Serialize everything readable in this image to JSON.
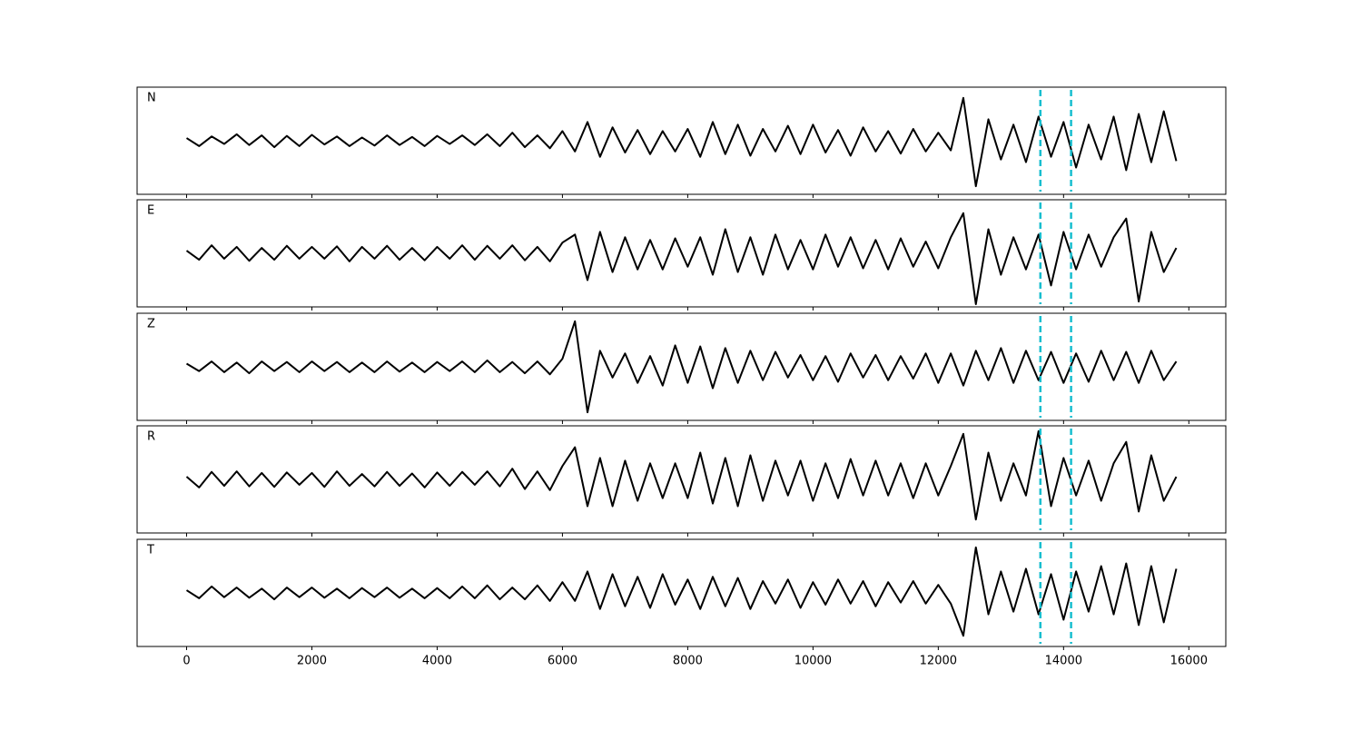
{
  "chart_data": [
    {
      "type": "line",
      "label": "N",
      "color": "#000000",
      "x": [
        0,
        200,
        400,
        600,
        800,
        1000,
        1200,
        1400,
        1600,
        1800,
        2000,
        2200,
        2400,
        2600,
        2800,
        3000,
        3200,
        3400,
        3600,
        3800,
        4000,
        4200,
        4400,
        4600,
        4800,
        5000,
        5200,
        5400,
        5600,
        5800,
        6000,
        6200,
        6400,
        6600,
        6800,
        7000,
        7200,
        7400,
        7600,
        7800,
        8000,
        8200,
        8400,
        8600,
        8800,
        9000,
        9200,
        9400,
        9600,
        9800,
        10000,
        10200,
        10400,
        10600,
        10800,
        11000,
        11200,
        11400,
        11600,
        11800,
        12000,
        12200,
        12400,
        12600,
        12800,
        13000,
        13200,
        13400,
        13600,
        13800,
        14000,
        14200,
        14400,
        14600,
        14800,
        15000,
        15200,
        15400,
        15600,
        15800
      ],
      "values": [
        0.05,
        -0.1,
        0.08,
        -0.06,
        0.12,
        -0.08,
        0.1,
        -0.12,
        0.09,
        -0.1,
        0.11,
        -0.07,
        0.08,
        -0.1,
        0.06,
        -0.09,
        0.1,
        -0.08,
        0.07,
        -0.1,
        0.09,
        -0.06,
        0.1,
        -0.08,
        0.12,
        -0.1,
        0.15,
        -0.12,
        0.1,
        -0.14,
        0.18,
        -0.2,
        0.35,
        -0.3,
        0.25,
        -0.22,
        0.2,
        -0.25,
        0.18,
        -0.2,
        0.22,
        -0.3,
        0.35,
        -0.25,
        0.3,
        -0.28,
        0.22,
        -0.2,
        0.28,
        -0.25,
        0.3,
        -0.22,
        0.2,
        -0.28,
        0.25,
        -0.2,
        0.18,
        -0.24,
        0.22,
        -0.2,
        0.15,
        -0.18,
        0.8,
        -0.85,
        0.4,
        -0.35,
        0.3,
        -0.4,
        0.45,
        -0.3,
        0.35,
        -0.5,
        0.3,
        -0.35,
        0.45,
        -0.55,
        0.5,
        -0.4,
        0.55,
        -0.38
      ],
      "xlim": [
        -790,
        16590
      ],
      "ylim": [
        -1,
        1
      ],
      "xticks": [
        0,
        2000,
        4000,
        6000,
        8000,
        10000,
        12000,
        14000,
        16000
      ],
      "vlines": [
        13630,
        14120
      ],
      "vline_color": "#17becf"
    },
    {
      "type": "line",
      "label": "E",
      "color": "#000000",
      "x": [
        0,
        200,
        400,
        600,
        800,
        1000,
        1200,
        1400,
        1600,
        1800,
        2000,
        2200,
        2400,
        2600,
        2800,
        3000,
        3200,
        3400,
        3600,
        3800,
        4000,
        4200,
        4400,
        4600,
        4800,
        5000,
        5200,
        5400,
        5600,
        5800,
        6000,
        6200,
        6400,
        6600,
        6800,
        7000,
        7200,
        7400,
        7600,
        7800,
        8000,
        8200,
        8400,
        8600,
        8800,
        9000,
        9200,
        9400,
        9600,
        9800,
        10000,
        10200,
        10400,
        10600,
        10800,
        11000,
        11200,
        11400,
        11600,
        11800,
        12000,
        12200,
        12400,
        12600,
        12800,
        13000,
        13200,
        13400,
        13600,
        13800,
        14000,
        14200,
        14400,
        14600,
        14800,
        15000,
        15200,
        15400,
        15600,
        15800
      ],
      "values": [
        0.05,
        -0.12,
        0.15,
        -0.1,
        0.12,
        -0.14,
        0.1,
        -0.12,
        0.14,
        -0.1,
        0.12,
        -0.1,
        0.13,
        -0.15,
        0.12,
        -0.1,
        0.14,
        -0.12,
        0.1,
        -0.13,
        0.12,
        -0.1,
        0.15,
        -0.12,
        0.14,
        -0.1,
        0.15,
        -0.13,
        0.12,
        -0.15,
        0.2,
        0.35,
        -0.5,
        0.4,
        -0.35,
        0.3,
        -0.3,
        0.25,
        -0.3,
        0.28,
        -0.25,
        0.3,
        -0.4,
        0.45,
        -0.35,
        0.3,
        -0.4,
        0.35,
        -0.3,
        0.25,
        -0.3,
        0.35,
        -0.25,
        0.3,
        -0.28,
        0.25,
        -0.3,
        0.28,
        -0.25,
        0.22,
        -0.28,
        0.3,
        0.75,
        -0.95,
        0.45,
        -0.4,
        0.3,
        -0.3,
        0.35,
        -0.6,
        0.4,
        -0.3,
        0.35,
        -0.25,
        0.3,
        0.65,
        -0.9,
        0.4,
        -0.35,
        0.1
      ],
      "xlim": [
        -790,
        16590
      ],
      "ylim": [
        -1,
        1
      ],
      "xticks": [
        0,
        2000,
        4000,
        6000,
        8000,
        10000,
        12000,
        14000,
        16000
      ],
      "vlines": [
        13630,
        14120
      ],
      "vline_color": "#17becf"
    },
    {
      "type": "line",
      "label": "Z",
      "color": "#000000",
      "x": [
        0,
        200,
        400,
        600,
        800,
        1000,
        1200,
        1400,
        1600,
        1800,
        2000,
        2200,
        2400,
        2600,
        2800,
        3000,
        3200,
        3400,
        3600,
        3800,
        4000,
        4200,
        4400,
        4600,
        4800,
        5000,
        5200,
        5400,
        5600,
        5800,
        6000,
        6200,
        6400,
        6600,
        6800,
        7000,
        7200,
        7400,
        7600,
        7800,
        8000,
        8200,
        8400,
        8600,
        8800,
        9000,
        9200,
        9400,
        9600,
        9800,
        10000,
        10200,
        10400,
        10600,
        10800,
        11000,
        11200,
        11400,
        11600,
        11800,
        12000,
        12200,
        12400,
        12600,
        12800,
        13000,
        13200,
        13400,
        13600,
        13800,
        14000,
        14200,
        14400,
        14600,
        14800,
        15000,
        15200,
        15400,
        15600,
        15800
      ],
      "values": [
        0.06,
        -0.08,
        0.1,
        -0.1,
        0.08,
        -0.12,
        0.1,
        -0.08,
        0.09,
        -0.1,
        0.1,
        -0.08,
        0.09,
        -0.1,
        0.08,
        -0.1,
        0.1,
        -0.09,
        0.08,
        -0.1,
        0.09,
        -0.08,
        0.1,
        -0.1,
        0.12,
        -0.1,
        0.09,
        -0.12,
        0.1,
        -0.14,
        0.15,
        0.85,
        -0.85,
        0.3,
        -0.2,
        0.25,
        -0.3,
        0.2,
        -0.35,
        0.4,
        -0.3,
        0.38,
        -0.4,
        0.35,
        -0.3,
        0.3,
        -0.25,
        0.28,
        -0.2,
        0.22,
        -0.25,
        0.2,
        -0.28,
        0.25,
        -0.2,
        0.22,
        -0.25,
        0.2,
        -0.22,
        0.25,
        -0.3,
        0.25,
        -0.35,
        0.3,
        -0.25,
        0.35,
        -0.3,
        0.3,
        -0.25,
        0.28,
        -0.3,
        0.25,
        -0.28,
        0.3,
        -0.25,
        0.28,
        -0.3,
        0.3,
        -0.25,
        0.1
      ],
      "xlim": [
        -790,
        16590
      ],
      "ylim": [
        -1,
        1
      ],
      "xticks": [
        0,
        2000,
        4000,
        6000,
        8000,
        10000,
        12000,
        14000,
        16000
      ],
      "vlines": [
        13630,
        14120
      ],
      "vline_color": "#17becf"
    },
    {
      "type": "line",
      "label": "R",
      "color": "#000000",
      "x": [
        0,
        200,
        400,
        600,
        800,
        1000,
        1200,
        1400,
        1600,
        1800,
        2000,
        2200,
        2400,
        2600,
        2800,
        3000,
        3200,
        3400,
        3600,
        3800,
        4000,
        4200,
        4400,
        4600,
        4800,
        5000,
        5200,
        5400,
        5600,
        5800,
        6000,
        6200,
        6400,
        6600,
        6800,
        7000,
        7200,
        7400,
        7600,
        7800,
        8000,
        8200,
        8400,
        8600,
        8800,
        9000,
        9200,
        9400,
        9600,
        9800,
        10000,
        10200,
        10400,
        10600,
        10800,
        11000,
        11200,
        11400,
        11600,
        11800,
        12000,
        12200,
        12400,
        12600,
        12800,
        13000,
        13200,
        13400,
        13600,
        13800,
        14000,
        14200,
        14400,
        14600,
        14800,
        15000,
        15200,
        15400,
        15600,
        15800
      ],
      "values": [
        0.05,
        -0.15,
        0.14,
        -0.12,
        0.15,
        -0.13,
        0.12,
        -0.14,
        0.13,
        -0.1,
        0.12,
        -0.14,
        0.15,
        -0.12,
        0.1,
        -0.13,
        0.14,
        -0.12,
        0.11,
        -0.15,
        0.13,
        -0.12,
        0.14,
        -0.1,
        0.15,
        -0.13,
        0.2,
        -0.18,
        0.15,
        -0.2,
        0.25,
        0.6,
        -0.5,
        0.4,
        -0.5,
        0.35,
        -0.4,
        0.3,
        -0.35,
        0.3,
        -0.35,
        0.5,
        -0.45,
        0.4,
        -0.5,
        0.45,
        -0.4,
        0.35,
        -0.3,
        0.35,
        -0.4,
        0.3,
        -0.35,
        0.38,
        -0.3,
        0.35,
        -0.3,
        0.3,
        -0.35,
        0.3,
        -0.3,
        0.25,
        0.85,
        -0.75,
        0.5,
        -0.4,
        0.3,
        -0.3,
        0.9,
        -0.5,
        0.4,
        -0.3,
        0.35,
        -0.4,
        0.3,
        0.7,
        -0.6,
        0.45,
        -0.4,
        0.05
      ],
      "xlim": [
        -790,
        16590
      ],
      "ylim": [
        -1,
        1
      ],
      "xticks": [
        0,
        2000,
        4000,
        6000,
        8000,
        10000,
        12000,
        14000,
        16000
      ],
      "vlines": [
        13630,
        14120
      ],
      "vline_color": "#17becf"
    },
    {
      "type": "line",
      "label": "T",
      "color": "#000000",
      "x": [
        0,
        200,
        400,
        600,
        800,
        1000,
        1200,
        1400,
        1600,
        1800,
        2000,
        2200,
        2400,
        2600,
        2800,
        3000,
        3200,
        3400,
        3600,
        3800,
        4000,
        4200,
        4400,
        4600,
        4800,
        5000,
        5200,
        5400,
        5600,
        5800,
        6000,
        6200,
        6400,
        6600,
        6800,
        7000,
        7200,
        7400,
        7600,
        7800,
        8000,
        8200,
        8400,
        8600,
        8800,
        9000,
        9200,
        9400,
        9600,
        9800,
        10000,
        10200,
        10400,
        10600,
        10800,
        11000,
        11200,
        11400,
        11600,
        11800,
        12000,
        12200,
        12400,
        12600,
        12800,
        13000,
        13200,
        13400,
        13600,
        13800,
        14000,
        14200,
        14400,
        14600,
        14800,
        15000,
        15200,
        15400,
        15600,
        15800
      ],
      "values": [
        0.05,
        -0.1,
        0.12,
        -0.08,
        0.1,
        -0.09,
        0.08,
        -0.12,
        0.1,
        -0.08,
        0.1,
        -0.09,
        0.08,
        -0.1,
        0.09,
        -0.08,
        0.1,
        -0.09,
        0.08,
        -0.1,
        0.09,
        -0.1,
        0.12,
        -0.1,
        0.14,
        -0.12,
        0.1,
        -0.12,
        0.14,
        -0.15,
        0.2,
        -0.15,
        0.4,
        -0.3,
        0.35,
        -0.25,
        0.3,
        -0.28,
        0.35,
        -0.22,
        0.25,
        -0.3,
        0.3,
        -0.25,
        0.28,
        -0.3,
        0.22,
        -0.2,
        0.25,
        -0.28,
        0.2,
        -0.22,
        0.25,
        -0.2,
        0.22,
        -0.25,
        0.2,
        -0.18,
        0.22,
        -0.2,
        0.15,
        -0.2,
        -0.8,
        0.85,
        -0.4,
        0.4,
        -0.35,
        0.45,
        -0.4,
        0.35,
        -0.5,
        0.4,
        -0.35,
        0.5,
        -0.4,
        0.55,
        -0.6,
        0.5,
        -0.55,
        0.45
      ],
      "xlim": [
        -790,
        16590
      ],
      "ylim": [
        -1,
        1
      ],
      "xticks": [
        0,
        2000,
        4000,
        6000,
        8000,
        10000,
        12000,
        14000,
        16000
      ],
      "vlines": [
        13630,
        14120
      ],
      "vline_color": "#17becf"
    }
  ]
}
